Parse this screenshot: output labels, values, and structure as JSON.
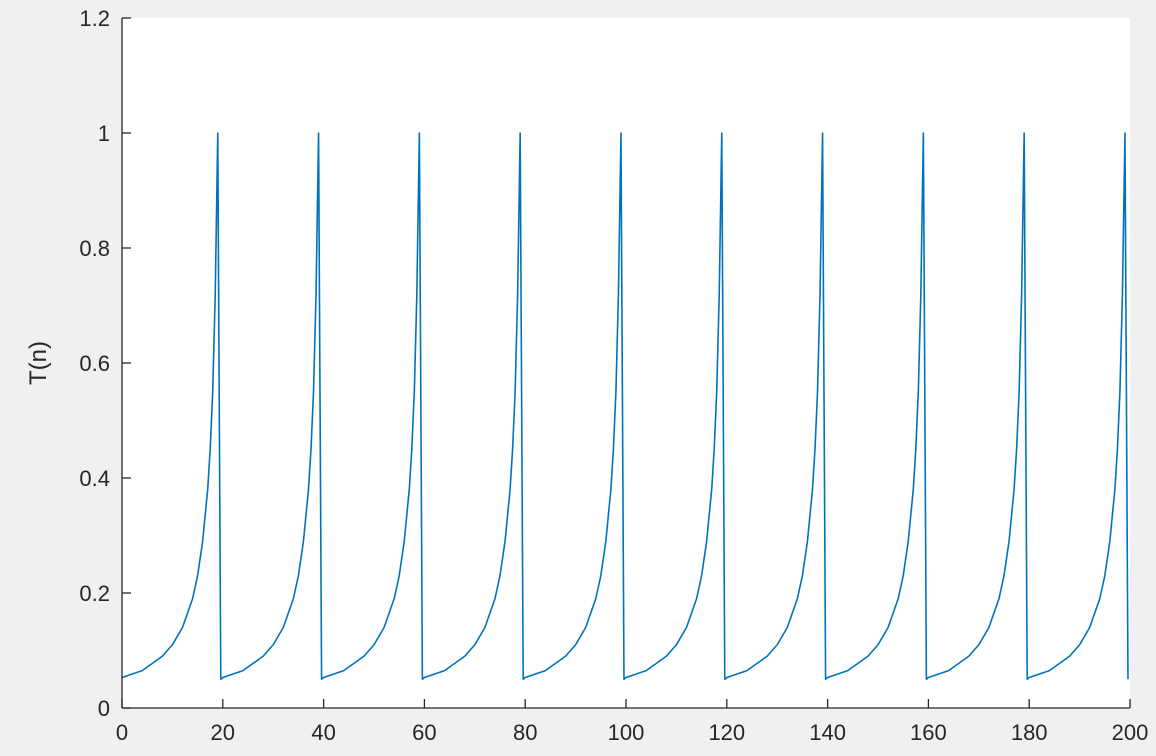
{
  "chart_data": {
    "type": "line",
    "title": "",
    "xlabel": "",
    "ylabel": "T(n)",
    "xlim": [
      0,
      200
    ],
    "ylim": [
      0,
      1.2
    ],
    "xticks": [
      0,
      20,
      40,
      60,
      80,
      100,
      120,
      140,
      160,
      180,
      200
    ],
    "yticks": [
      0,
      0.2,
      0.4,
      0.6,
      0.8,
      1,
      1.2
    ],
    "xtick_labels": [
      "0",
      "20",
      "40",
      "60",
      "80",
      "100",
      "120",
      "140",
      "160",
      "180",
      "200"
    ],
    "ytick_labels": [
      "0",
      "0.2",
      "0.4",
      "0.6",
      "0.8",
      "1",
      "1.2"
    ],
    "grid": false,
    "legend": "none",
    "series": [
      {
        "color": "#0072bd",
        "period": 20,
        "cycle_x": [
          0,
          4,
          8,
          10,
          12,
          14,
          15,
          16,
          17,
          17.5,
          18,
          18.5,
          19
        ],
        "cycle_y": [
          0.053,
          0.065,
          0.09,
          0.11,
          0.14,
          0.19,
          0.23,
          0.29,
          0.38,
          0.45,
          0.55,
          0.72,
          1.0
        ],
        "x": [
          0,
          4,
          8,
          10,
          12,
          14,
          15,
          16,
          17,
          17.5,
          18,
          18.5,
          19,
          19.6,
          20,
          24,
          28,
          30,
          32,
          34,
          35,
          36,
          37,
          37.5,
          38,
          38.5,
          39,
          39.6,
          40,
          44,
          48,
          50,
          52,
          54,
          55,
          56,
          57,
          57.5,
          58,
          58.5,
          59,
          59.6,
          60,
          64,
          68,
          70,
          72,
          74,
          75,
          76,
          77,
          77.5,
          78,
          78.5,
          79,
          79.6,
          80,
          84,
          88,
          90,
          92,
          94,
          95,
          96,
          97,
          97.5,
          98,
          98.5,
          99,
          99.6,
          100,
          104,
          108,
          110,
          112,
          114,
          115,
          116,
          117,
          117.5,
          118,
          118.5,
          119,
          119.6,
          120,
          124,
          128,
          130,
          132,
          134,
          135,
          136,
          137,
          137.5,
          138,
          138.5,
          139,
          139.6,
          140,
          144,
          148,
          150,
          152,
          154,
          155,
          156,
          157,
          157.5,
          158,
          158.5,
          159,
          159.6,
          160,
          164,
          168,
          170,
          172,
          174,
          175,
          176,
          177,
          177.5,
          178,
          178.5,
          179,
          179.6,
          180,
          184,
          188,
          190,
          192,
          194,
          195,
          196,
          197,
          197.5,
          198,
          198.5,
          199,
          199.6
        ],
        "y": [
          0.053,
          0.065,
          0.09,
          0.11,
          0.14,
          0.19,
          0.23,
          0.29,
          0.38,
          0.45,
          0.55,
          0.72,
          1.0,
          0.05,
          0.053,
          0.065,
          0.09,
          0.11,
          0.14,
          0.19,
          0.23,
          0.29,
          0.38,
          0.45,
          0.55,
          0.72,
          1.0,
          0.05,
          0.053,
          0.065,
          0.09,
          0.11,
          0.14,
          0.19,
          0.23,
          0.29,
          0.38,
          0.45,
          0.55,
          0.72,
          1.0,
          0.05,
          0.053,
          0.065,
          0.09,
          0.11,
          0.14,
          0.19,
          0.23,
          0.29,
          0.38,
          0.45,
          0.55,
          0.72,
          1.0,
          0.05,
          0.053,
          0.065,
          0.09,
          0.11,
          0.14,
          0.19,
          0.23,
          0.29,
          0.38,
          0.45,
          0.55,
          0.72,
          1.0,
          0.05,
          0.053,
          0.065,
          0.09,
          0.11,
          0.14,
          0.19,
          0.23,
          0.29,
          0.38,
          0.45,
          0.55,
          0.72,
          1.0,
          0.05,
          0.053,
          0.065,
          0.09,
          0.11,
          0.14,
          0.19,
          0.23,
          0.29,
          0.38,
          0.45,
          0.55,
          0.72,
          1.0,
          0.05,
          0.053,
          0.065,
          0.09,
          0.11,
          0.14,
          0.19,
          0.23,
          0.29,
          0.38,
          0.45,
          0.55,
          0.72,
          1.0,
          0.05,
          0.053,
          0.065,
          0.09,
          0.11,
          0.14,
          0.19,
          0.23,
          0.29,
          0.38,
          0.45,
          0.55,
          0.72,
          1.0,
          0.05,
          0.053,
          0.065,
          0.09,
          0.11,
          0.14,
          0.19,
          0.23,
          0.29,
          0.38,
          0.45,
          0.55,
          0.72,
          1.0,
          0.05
        ]
      }
    ]
  }
}
